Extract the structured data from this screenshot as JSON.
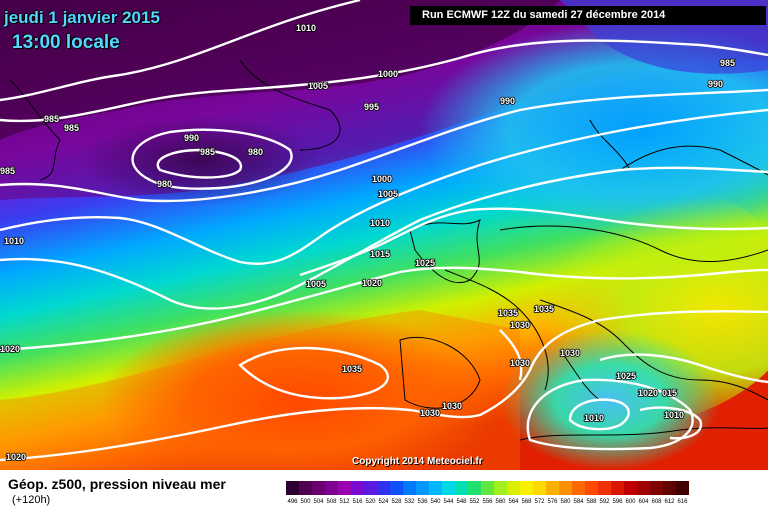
{
  "title": {
    "date": "jeudi 1 janvier 2015",
    "time": "13:00 locale"
  },
  "run_info": "Run ECMWF 12Z du samedi 27 décembre 2014",
  "copyright": "Copyright 2014 Meteociel.fr",
  "legend": {
    "title": "Géop. z500, pression niveau mer",
    "subtitle": "(+120h)",
    "scale_values": [
      "496",
      "500",
      "504",
      "508",
      "512",
      "516",
      "520",
      "524",
      "528",
      "532",
      "536",
      "540",
      "544",
      "548",
      "552",
      "556",
      "560",
      "564",
      "568",
      "572",
      "576",
      "580",
      "584",
      "588",
      "592",
      "596",
      "600",
      "604",
      "608",
      "612",
      "616"
    ],
    "scale_colors": [
      "#2a0030",
      "#4d0050",
      "#6a0070",
      "#7e0090",
      "#9a00b0",
      "#7a0bd0",
      "#5a1ae0",
      "#3030f0",
      "#1050ff",
      "#0078ff",
      "#0098ff",
      "#00b8ff",
      "#00d8e8",
      "#00e0b0",
      "#20e070",
      "#60e840",
      "#a0f020",
      "#d8f000",
      "#f8f000",
      "#ffd800",
      "#ffb000",
      "#ff9000",
      "#ff6a00",
      "#ff4a00",
      "#f03000",
      "#d81800",
      "#c00000",
      "#a00000",
      "#800000",
      "#600000",
      "#400000"
    ]
  },
  "pressure_labels": [
    "1010",
    "1000",
    "1005",
    "995",
    "990",
    "985",
    "985",
    "985",
    "990",
    "985",
    "980",
    "980",
    "1000",
    "1005",
    "1010",
    "1015",
    "1025",
    "1005",
    "1020",
    "1010",
    "1035",
    "1035",
    "1030",
    "1030",
    "1030",
    "1025",
    "1020",
    "015",
    "1010",
    "1010",
    "1035",
    "1030",
    "1030",
    "1020",
    "1020",
    "990",
    "985"
  ]
}
